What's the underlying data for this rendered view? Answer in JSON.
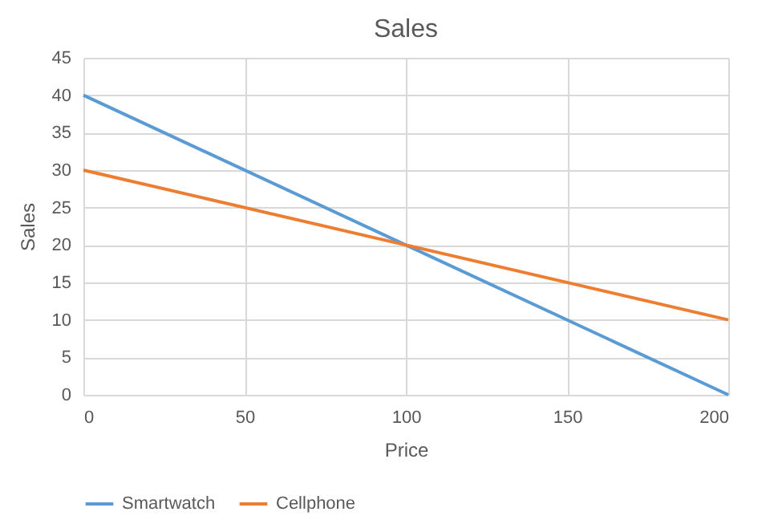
{
  "chart_data": {
    "type": "line",
    "title": "Sales",
    "xlabel": "Price",
    "ylabel": "Sales",
    "x": [
      0,
      100,
      200
    ],
    "series": [
      {
        "name": "Smartwatch",
        "color": "#5b9bd5",
        "values": [
          40,
          20,
          0
        ]
      },
      {
        "name": "Cellphone",
        "color": "#ed7d31",
        "values": [
          30,
          20,
          10
        ]
      }
    ],
    "xlim": [
      0,
      200
    ],
    "xticks": [
      0,
      50,
      100,
      150,
      200
    ],
    "ylim": [
      0,
      45
    ],
    "yticks": [
      0,
      5,
      10,
      15,
      20,
      25,
      30,
      35,
      40,
      45
    ],
    "grid": true,
    "legend": "bottom",
    "marker": "none",
    "line_style": "solid"
  }
}
